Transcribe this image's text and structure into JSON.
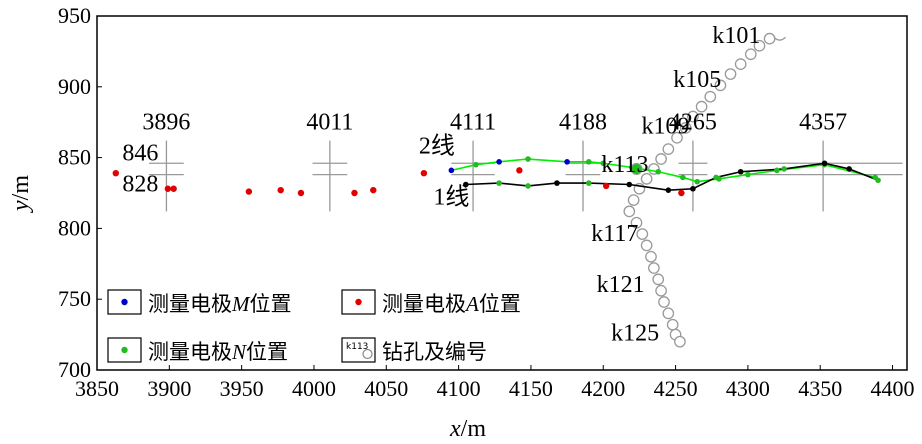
{
  "chart_data": {
    "type": "scatter",
    "xlabel": "x/m",
    "ylabel": "y/m",
    "xlim": [
      3850,
      4410
    ],
    "ylim": [
      700,
      950
    ],
    "xticks": [
      3850,
      3900,
      3950,
      4000,
      4050,
      4100,
      4150,
      4200,
      4250,
      4300,
      4350,
      4400
    ],
    "yticks": [
      700,
      750,
      800,
      850,
      900,
      950
    ],
    "grid": false,
    "legend_position": "bottom-left",
    "legend": [
      {
        "label": "测量电极M位置",
        "marker": "filled-circle",
        "color": "#0000cc"
      },
      {
        "label": "测量电极A位置",
        "marker": "filled-circle",
        "color": "#e00000"
      },
      {
        "label": "测量电极N位置",
        "marker": "filled-circle",
        "color": "#22bb22"
      },
      {
        "label": "钻孔及编号",
        "marker": "open-circle",
        "color": "#888888",
        "sample_text": "k113"
      }
    ],
    "series": [
      {
        "name": "测量电极A位置",
        "color": "#e00000",
        "points": [
          [
            3863,
            839
          ],
          [
            3899,
            828
          ],
          [
            3903,
            828
          ],
          [
            3955,
            826
          ],
          [
            3977,
            827
          ],
          [
            3991,
            825
          ],
          [
            4028,
            825
          ],
          [
            4041,
            827
          ],
          [
            4076,
            839
          ],
          [
            4142,
            841
          ],
          [
            4202,
            830
          ],
          [
            4254,
            825
          ]
        ]
      },
      {
        "name": "line2",
        "label": "2线",
        "color": "#00ee00",
        "points": [
          [
            4095,
            841
          ],
          [
            4112,
            845
          ],
          [
            4128,
            847
          ],
          [
            4148,
            849
          ],
          [
            4175,
            847
          ],
          [
            4190,
            847
          ],
          [
            4200,
            846
          ],
          [
            4220,
            843
          ],
          [
            4238,
            840
          ],
          [
            4255,
            836
          ],
          [
            4265,
            833
          ],
          [
            4280,
            835
          ],
          [
            4300,
            838
          ],
          [
            4320,
            841
          ],
          [
            4353,
            845
          ],
          [
            4388,
            836
          ]
        ]
      },
      {
        "name": "line1",
        "label": "1线",
        "color": "#000000",
        "points": [
          [
            4105,
            831
          ],
          [
            4128,
            832
          ],
          [
            4148,
            830
          ],
          [
            4168,
            832
          ],
          [
            4190,
            832
          ],
          [
            4218,
            831
          ],
          [
            4245,
            827
          ],
          [
            4262,
            828
          ],
          [
            4278,
            836
          ],
          [
            4295,
            840
          ],
          [
            4325,
            842
          ],
          [
            4353,
            846
          ],
          [
            4370,
            842
          ],
          [
            4390,
            834
          ]
        ]
      }
    ],
    "series1_marker_colors": [
      "#000000",
      "#22bb22",
      "#22bb22",
      "#000000",
      "#22bb22",
      "#000000",
      "#000000",
      "#000000",
      "#22bb22",
      "#000000",
      "#22bb22",
      "#000000",
      "#000000",
      "#22bb22"
    ],
    "series2_marker_colors": [
      "#0000cc",
      "#22bb22",
      "#0000cc",
      "#22bb22",
      "#0000cc",
      "#22bb22",
      "#22bb22",
      "#0000cc",
      "#22bb22",
      "#22bb22",
      "#22bb22",
      "#22bb22",
      "#22bb22",
      "#22bb22",
      "#22bb22",
      "#22bb22"
    ],
    "crosses": [
      {
        "label": "3896",
        "x": 3898,
        "y": 838,
        "half_width": 12,
        "top": 862,
        "bottom": 812
      },
      {
        "label": "4011",
        "x": 4011,
        "y": 838,
        "half_width": 12,
        "top": 862,
        "bottom": 812
      },
      {
        "label": "4111",
        "x": 4110,
        "y": 838,
        "half_width": 15,
        "top": 862,
        "bottom": 812
      },
      {
        "label": "4188",
        "x": 4186,
        "y": 838,
        "half_width": 12,
        "top": 862,
        "bottom": 812
      },
      {
        "label": "4265",
        "x": 4262,
        "y": 838,
        "half_width": 10,
        "top": 862,
        "bottom": 812
      },
      {
        "label": "4357",
        "x": 4352,
        "y": 838,
        "half_width": 55,
        "top": 862,
        "bottom": 812
      }
    ],
    "boreholes_upper": [
      [
        4315,
        934
      ],
      [
        4308,
        929
      ],
      [
        4302,
        923
      ],
      [
        4295,
        916
      ],
      [
        4288,
        909
      ],
      [
        4281,
        901
      ],
      [
        4274,
        893
      ],
      [
        4268,
        886
      ],
      [
        4262,
        879
      ],
      [
        4257,
        871
      ],
      [
        4251,
        864
      ],
      [
        4245,
        856
      ],
      [
        4240,
        849
      ],
      [
        4235,
        842
      ],
      [
        4230,
        835
      ],
      [
        4225,
        828
      ],
      [
        4221,
        820
      ],
      [
        4218,
        812
      ]
    ],
    "boreholes_lower": [
      [
        4223,
        804
      ],
      [
        4227,
        796
      ],
      [
        4230,
        788
      ],
      [
        4233,
        780
      ],
      [
        4235,
        772
      ],
      [
        4238,
        764
      ],
      [
        4240,
        756
      ],
      [
        4242,
        748
      ],
      [
        4245,
        740
      ],
      [
        4248,
        732
      ],
      [
        4250,
        725
      ],
      [
        4253,
        720
      ]
    ],
    "borehole_labels": [
      {
        "text": "k101",
        "x": 4292,
        "y": 931
      },
      {
        "text": "k105",
        "x": 4265,
        "y": 900
      },
      {
        "text": "k109",
        "x": 4243,
        "y": 867
      },
      {
        "text": "k113",
        "x": 4215,
        "y": 840
      },
      {
        "text": "k117",
        "x": 4208,
        "y": 791
      },
      {
        "text": "k121",
        "x": 4212,
        "y": 755
      },
      {
        "text": "k125",
        "x": 4222,
        "y": 721
      }
    ],
    "annotations": [
      {
        "text": "846",
        "x": 3880,
        "y": 848
      },
      {
        "text": "828",
        "x": 3880,
        "y": 826
      },
      {
        "text": "2线",
        "x": 4085,
        "y": 853
      },
      {
        "text": "1线",
        "x": 4095,
        "y": 817
      }
    ]
  }
}
